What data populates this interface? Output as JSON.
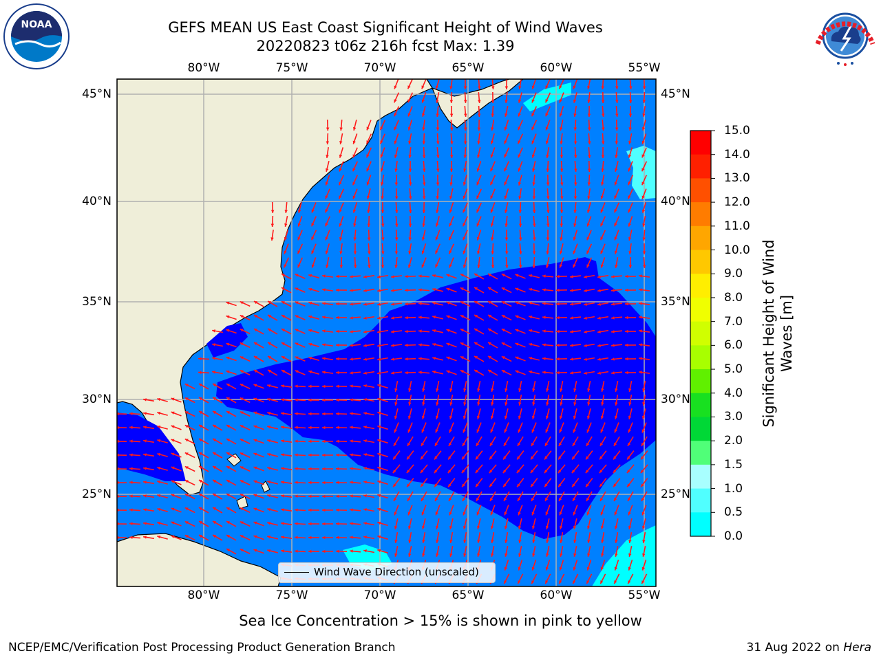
{
  "title": {
    "line1": "GEFS MEAN US East Coast Significant Height of Wind Waves",
    "line2": "20220823 t06z 216h fcst   Max: 1.39"
  },
  "map": {
    "lon_ticks": [
      "80°W",
      "75°W",
      "70°W",
      "65°W",
      "60°W",
      "55°W"
    ],
    "lat_ticks": [
      "45°N",
      "40°N",
      "35°N",
      "30°N",
      "25°N"
    ],
    "legend_label": "Wind Wave Direction (unscaled)",
    "land_color": "#efeed9",
    "arrow_color": "#ff1a1a"
  },
  "colorbar": {
    "label_line1": "Significant Height of Wind",
    "label_line2": "Waves [m]",
    "ticks": [
      "15.0",
      "14.0",
      "13.0",
      "12.0",
      "11.0",
      "10.0",
      "9.0",
      "8.0",
      "7.0",
      "6.0",
      "5.0",
      "4.0",
      "3.0",
      "2.0",
      "1.5",
      "1.0",
      "0.5",
      "0.0"
    ],
    "colors": [
      "#ff0000",
      "#ff2000",
      "#ff5000",
      "#ff7c00",
      "#ffa600",
      "#ffc800",
      "#ffee00",
      "#f0ff00",
      "#d0ff00",
      "#a8ff00",
      "#60f000",
      "#18e020",
      "#00d836",
      "#50ff78",
      "#a8ffff",
      "#50ffff",
      "#00ffff",
      "#0080ff",
      "#0000ff"
    ]
  },
  "caption": "Sea Ice Concentration > 15% is shown in pink to yellow",
  "footer": {
    "left": "NCEP/EMC/Verification Post Processing Product Generation Branch",
    "right_prefix": "31 Aug 2022 on ",
    "right_machine": "Hera"
  },
  "logos": {
    "noaa_text": "NOAA",
    "nws_text": "NATIONAL WEATHER SERVICE"
  }
}
